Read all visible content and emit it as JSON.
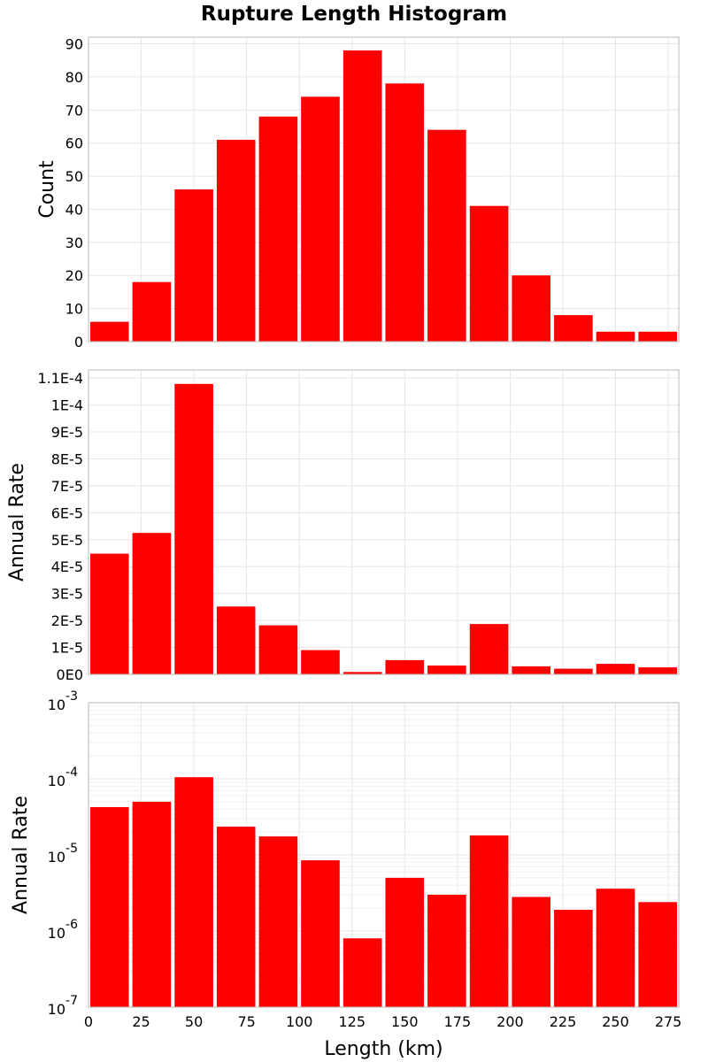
{
  "title": "Rupture Length Histogram",
  "colors": {
    "bar": "#ff0000",
    "grid": "#e6e6e6",
    "frame": "#b8b8b8"
  },
  "chart_data": [
    {
      "type": "bar",
      "ylabel": "Count",
      "xlim": [
        0,
        280
      ],
      "ylim": [
        0,
        92
      ],
      "yticks": [
        0,
        10,
        20,
        30,
        40,
        50,
        60,
        70,
        80,
        90
      ],
      "ytick_labels": [
        "0",
        "10",
        "20",
        "30",
        "40",
        "50",
        "60",
        "70",
        "80",
        "90"
      ],
      "grid": true,
      "bin_width": 20,
      "x": [
        10,
        30,
        50,
        70,
        90,
        110,
        130,
        150,
        170,
        190,
        210,
        230,
        250,
        270
      ],
      "values": [
        6,
        18,
        46,
        61,
        68,
        74,
        88,
        78,
        64,
        41,
        20,
        8,
        3,
        3
      ]
    },
    {
      "type": "bar",
      "ylabel": "Annual Rate",
      "xlim": [
        0,
        280
      ],
      "ylim": [
        0,
        0.000113
      ],
      "yticks": [
        0,
        1e-05,
        2e-05,
        3e-05,
        4e-05,
        5e-05,
        6e-05,
        7e-05,
        8e-05,
        9e-05,
        0.0001,
        0.00011
      ],
      "ytick_labels": [
        "0E0",
        "1E-5",
        "2E-5",
        "3E-5",
        "4E-5",
        "5E-5",
        "6E-5",
        "7E-5",
        "8E-5",
        "9E-5",
        "1E-4",
        "1.1E-4"
      ],
      "grid": true,
      "bin_width": 20,
      "x": [
        10,
        30,
        50,
        70,
        90,
        110,
        130,
        150,
        170,
        190,
        210,
        230,
        250,
        270
      ],
      "values": [
        4.48e-05,
        5.25e-05,
        0.0001078,
        2.52e-05,
        1.82e-05,
        9e-06,
        9e-07,
        5.3e-06,
        3.3e-06,
        1.87e-05,
        3e-06,
        2.1e-06,
        3.9e-06,
        2.6e-06
      ]
    },
    {
      "type": "bar",
      "scale": "log",
      "ylabel": "Annual Rate",
      "xlabel": "Length (km)",
      "xlim": [
        0,
        280
      ],
      "xticks": [
        0,
        25,
        50,
        75,
        100,
        125,
        150,
        175,
        200,
        225,
        250,
        275
      ],
      "ylim": [
        1e-07,
        0.001
      ],
      "ytick_exponents": [
        -7,
        -6,
        -5,
        -4,
        -3
      ],
      "ytick_base": "10",
      "grid": true,
      "bin_width": 20,
      "x": [
        10,
        30,
        50,
        70,
        90,
        110,
        130,
        150,
        170,
        190,
        210,
        230,
        250,
        270
      ],
      "values": [
        4.25e-05,
        5e-05,
        0.000105,
        2.35e-05,
        1.75e-05,
        8.5e-06,
        8e-07,
        5e-06,
        3e-06,
        1.8e-05,
        2.8e-06,
        1.9e-06,
        3.6e-06,
        2.4e-06
      ]
    }
  ]
}
